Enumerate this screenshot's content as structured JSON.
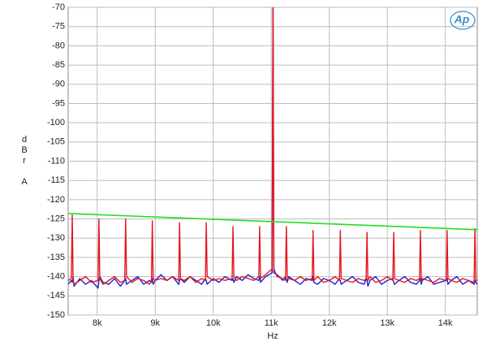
{
  "chart_data": {
    "type": "line",
    "xlabel": "Hz",
    "ylabel": "dBr A",
    "logo": "Ap",
    "xlim": [
      7500,
      14550
    ],
    "ylim": [
      -150,
      -70
    ],
    "xticks": [
      {
        "value": 8000,
        "label": "8k"
      },
      {
        "value": 9000,
        "label": "9k"
      },
      {
        "value": 10000,
        "label": "10k"
      },
      {
        "value": 11000,
        "label": "11k"
      },
      {
        "value": 12000,
        "label": "12k"
      },
      {
        "value": 13000,
        "label": "13k"
      },
      {
        "value": 14000,
        "label": "14k"
      }
    ],
    "yticks": [
      -150,
      -145,
      -140,
      -135,
      -130,
      -125,
      -120,
      -115,
      -110,
      -105,
      -100,
      -95,
      -90,
      -85,
      -80,
      -75,
      -70
    ],
    "grid": true,
    "x": [
      7500,
      7555,
      7570,
      7585,
      7600,
      7700,
      7800,
      7900,
      8015,
      8030,
      8045,
      8100,
      8200,
      8300,
      8400,
      8475,
      8490,
      8505,
      8600,
      8700,
      8800,
      8900,
      8935,
      8950,
      8965,
      9000,
      9100,
      9200,
      9300,
      9405,
      9420,
      9435,
      9500,
      9600,
      9700,
      9800,
      9865,
      9880,
      9895,
      10000,
      10100,
      10200,
      10325,
      10340,
      10355,
      10400,
      10500,
      10600,
      10700,
      10785,
      10800,
      10815,
      10900,
      11015,
      11030,
      11045,
      11100,
      11200,
      11245,
      11260,
      11275,
      11300,
      11400,
      11500,
      11600,
      11705,
      11720,
      11735,
      11800,
      11900,
      12000,
      12100,
      12175,
      12190,
      12205,
      12300,
      12400,
      12500,
      12600,
      12635,
      12650,
      12665,
      12700,
      12800,
      12900,
      13000,
      13095,
      13110,
      13125,
      13200,
      13300,
      13400,
      13500,
      13555,
      13570,
      13585,
      13600,
      13700,
      13800,
      13900,
      14015,
      14030,
      14045,
      14100,
      14200,
      14300,
      14400,
      14495,
      14510,
      14525,
      14550
    ],
    "series": [
      {
        "color": "#2020d0",
        "values": [
          -142,
          -141,
          -141.5,
          -140,
          -142.5,
          -140.5,
          -142,
          -141,
          -143,
          -141,
          -140,
          -141.5,
          -142,
          -140.5,
          -142.5,
          -141,
          -140.5,
          -142,
          -141,
          -140,
          -142,
          -141,
          -141.5,
          -140.5,
          -142,
          -141,
          -139.5,
          -141,
          -140,
          -142,
          -141,
          -140.5,
          -141.5,
          -140,
          -141,
          -142,
          -140.5,
          -141,
          -142,
          -140.5,
          -141.5,
          -140,
          -141,
          -140.5,
          -141.5,
          -140,
          -141,
          -139.5,
          -140.5,
          -141,
          -140,
          -141.5,
          -140,
          -139,
          -68,
          -139,
          -139.5,
          -141,
          -140,
          -140.5,
          -141.5,
          -140,
          -141,
          -142,
          -140.5,
          -141,
          -140,
          -141.5,
          -142,
          -140.5,
          -141,
          -142,
          -140.5,
          -141,
          -142,
          -141,
          -140,
          -141.5,
          -142,
          -140.5,
          -141,
          -142.5,
          -141,
          -140,
          -142,
          -141,
          -140.5,
          -141.5,
          -142,
          -141,
          -140,
          -141.5,
          -142,
          -141,
          -140.5,
          -142,
          -141,
          -140,
          -142,
          -141.5,
          -141,
          -140.5,
          -142,
          -141,
          -140,
          -142,
          -141,
          -142,
          -141,
          -141.5,
          -142
        ]
      },
      {
        "color": "#e8141e",
        "values": [
          -141,
          -140.5,
          -124,
          -141,
          -142,
          -141,
          -140,
          -141.5,
          -141,
          -125,
          -140.5,
          -142,
          -141,
          -140,
          -141.5,
          -141,
          -125,
          -140,
          -141.5,
          -140.5,
          -141,
          -142,
          -141,
          -125.5,
          -140.5,
          -141,
          -140.5,
          -141,
          -140,
          -141,
          -126,
          -140.5,
          -141,
          -140,
          -141.5,
          -140.5,
          -141,
          -126,
          -140,
          -141,
          -140.5,
          -141,
          -140.5,
          -127,
          -140,
          -141,
          -140,
          -140.5,
          -141,
          -140,
          -127,
          -140.5,
          -139.5,
          -138,
          -68,
          -138,
          -140,
          -140.5,
          -141,
          -127,
          -140,
          -140.5,
          -141,
          -140,
          -141,
          -140.5,
          -128,
          -141,
          -140,
          -141.5,
          -141,
          -140,
          -141,
          -128,
          -140.5,
          -141,
          -141.5,
          -140.5,
          -141,
          -140.5,
          -128.5,
          -141,
          -140,
          -141.5,
          -141,
          -140,
          -141,
          -128.5,
          -140.5,
          -141,
          -141.5,
          -140.5,
          -141,
          -140.5,
          -128,
          -141,
          -140.5,
          -141,
          -141.5,
          -140.5,
          -141,
          -128,
          -140.5,
          -141,
          -141.5,
          -140.5,
          -141,
          -141.5,
          -127.5,
          -141,
          -141
        ]
      }
    ],
    "limit_line": {
      "color": "#22dd22",
      "x": [
        7500,
        14550
      ],
      "values": [
        -123.6,
        -127.8
      ]
    }
  }
}
